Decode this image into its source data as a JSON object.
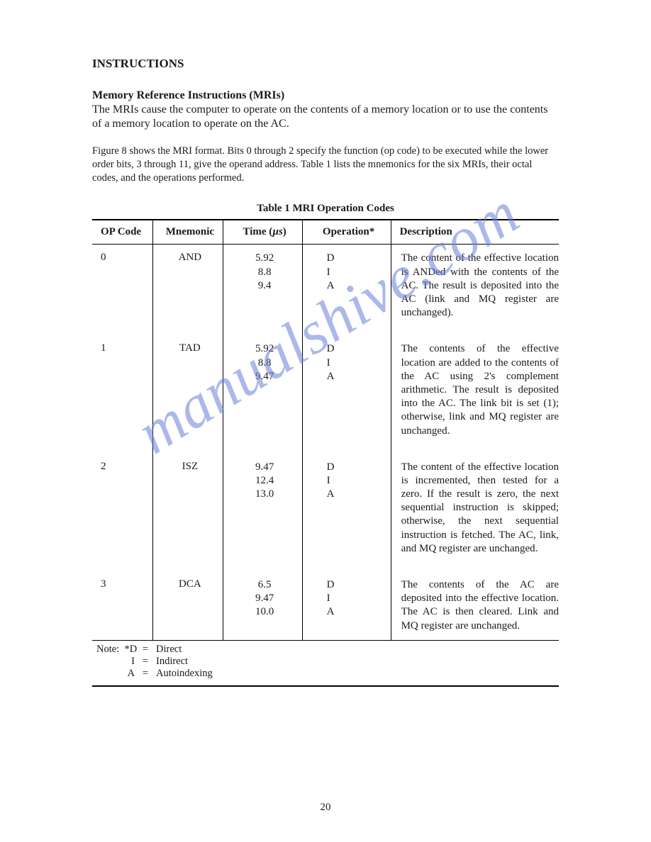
{
  "heading": "INSTRUCTIONS",
  "subheading": "Memory Reference Instructions (MRIs)",
  "intro_paragraph": "The MRIs cause the computer to operate on the contents of a memory location or to use the contents of a memory location to operate on the AC.",
  "figure_paragraph": "Figure 8 shows the MRI format. Bits 0 through 2 specify the function (op code) to be executed while the lower order bits, 3 through 11, give the operand address. Table 1 lists the mnemonics for the six MRIs, their octal codes, and the operations performed.",
  "table": {
    "caption": "Table 1   MRI Operation Codes",
    "columns": {
      "opcode": "OP Code",
      "mnemonic": "Mnemonic",
      "time_prefix": "Time (",
      "time_unit": "µs",
      "time_suffix": ")",
      "operation": "Operation*",
      "description": "Description"
    },
    "rows": [
      {
        "opcode": "0",
        "mnemonic": "AND",
        "times": [
          "5.92",
          "8.8",
          "9.4"
        ],
        "ops": [
          "D",
          "I",
          "A"
        ],
        "description": "The content of the effective location is ANDed with the contents of the AC. The result is deposited into the AC (link and MQ register are unchanged)."
      },
      {
        "opcode": "1",
        "mnemonic": "TAD",
        "times": [
          "5.92",
          "8.8",
          "9.47"
        ],
        "ops": [
          "D",
          "I",
          "A"
        ],
        "description": "The contents of the effective location are added to the contents of the AC using 2's complement arithmetic. The result is deposited into the AC. The link bit is set (1); otherwise, link and MQ register are unchanged."
      },
      {
        "opcode": "2",
        "mnemonic": "ISZ",
        "times": [
          "9.47",
          "12.4",
          "13.0"
        ],
        "ops": [
          "D",
          "I",
          "A"
        ],
        "description": "The content of the effective location is incremented, then tested for a zero. If the result is zero, the next sequential instruction is skipped; otherwise, the next sequential instruction is fetched. The AC, link, and MQ register are unchanged."
      },
      {
        "opcode": "3",
        "mnemonic": "DCA",
        "times": [
          "6.5",
          "9.47",
          "10.0"
        ],
        "ops": [
          "D",
          "I",
          "A"
        ],
        "description": "The contents of the AC are deposited into the effective location. The AC is then cleared. Link and MQ register are unchanged."
      }
    ]
  },
  "note": {
    "prefix": "Note:",
    "items": [
      {
        "label": "*D",
        "value": "Direct"
      },
      {
        "label": "I",
        "value": "Indirect"
      },
      {
        "label": "A",
        "value": "Autoindexing"
      }
    ],
    "eq": "="
  },
  "page_number": "20",
  "watermark": "manualshive.com",
  "colors": {
    "text": "#1a1a1a",
    "watermark": "#6a7fd8",
    "background": "#ffffff",
    "rule": "#000000"
  },
  "typography": {
    "body_font": "Times New Roman",
    "heading_size_pt": 13,
    "body_size_pt": 12,
    "small_size_pt": 11
  }
}
